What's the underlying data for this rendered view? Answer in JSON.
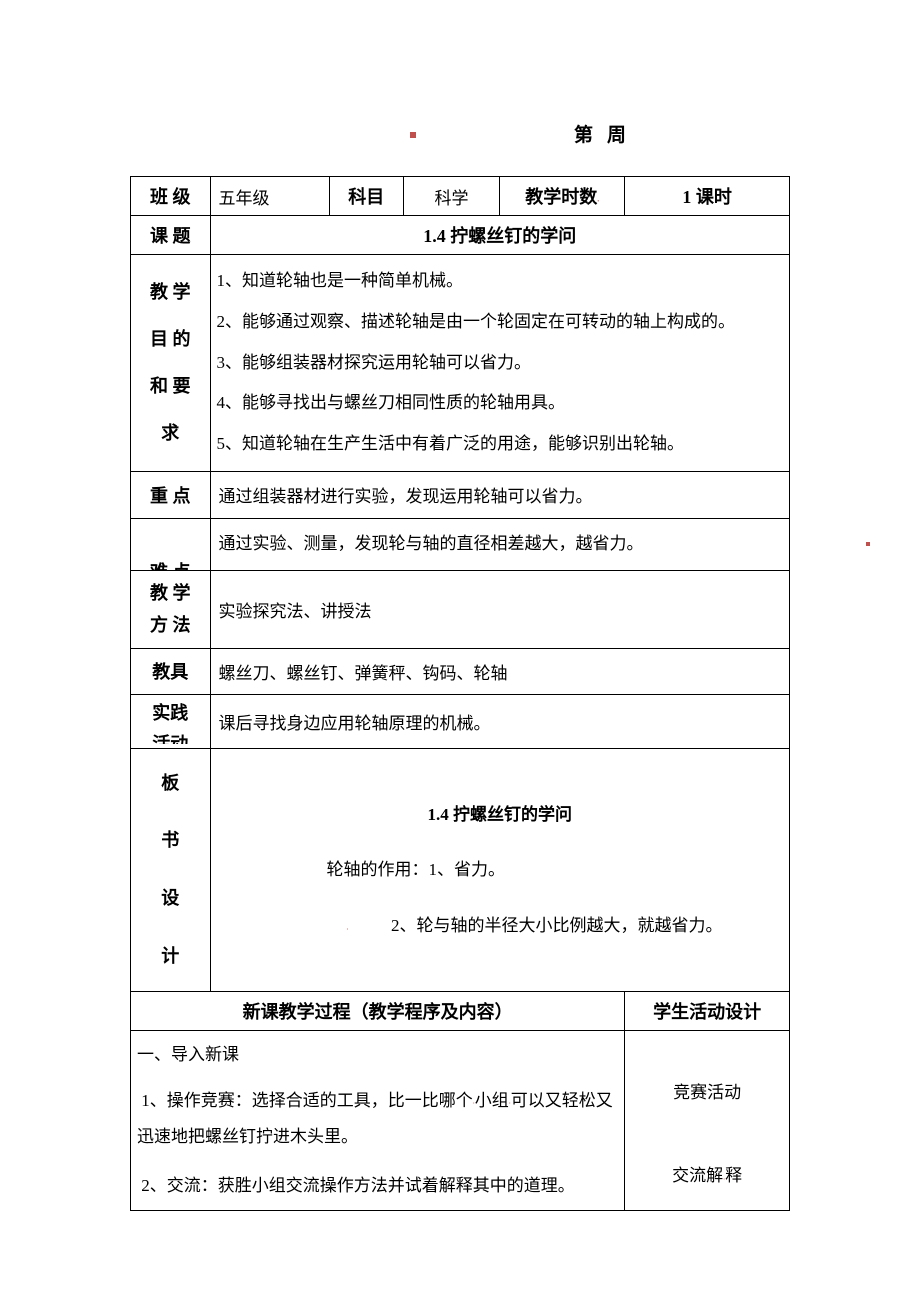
{
  "header": {
    "week_label": "第周"
  },
  "row1": {
    "class_label": "班 级",
    "class_value": "五年级",
    "subject_label": "科目",
    "subject_value": "科学",
    "hours_label": "教学时数",
    "hours_value": "1 课时"
  },
  "row2": {
    "topic_label": "课 题",
    "topic_value": "1.4 拧螺丝钉的学问"
  },
  "objectives": {
    "label_line1": "教 学",
    "label_line2": "目 的",
    "label_line3": "和 要",
    "label_line4": "求",
    "item1": "1、知道轮轴也是一种简单机械。",
    "item2": "2、能够通过观察、描述轮轴是由一个轮固定在可转动的轴上构成的。",
    "item3": "3、能够组装器材探究运用轮轴可以省力。",
    "item4": "4、能够寻找出与螺丝刀相同性质的轮轴用具。",
    "item5": "5、知道轮轴在生产生活中有着广泛的用途，能够识别出轮轴。"
  },
  "keypoint": {
    "label": "重 点",
    "value": "通过组装器材进行实验，发现运用轮轴可以省力。"
  },
  "difficulty": {
    "label": "难 点",
    "value": "通过实验、测量，发现轮与轴的直径相差越大，越省力。"
  },
  "method": {
    "label_line1": "教 学",
    "label_line2": "方 法",
    "value": "  实验探究法、讲授法"
  },
  "tools": {
    "label": "教具",
    "value": "螺丝刀、螺丝钉、弹簧秤、钩码、轮轴"
  },
  "practice": {
    "label_line1": "实践",
    "label_line2": "活动",
    "value": "课后寻找身边应用轮轴原理的机械。"
  },
  "board": {
    "label_c1": "板",
    "label_c2": "书",
    "label_c3": "设",
    "label_c4": "计",
    "title": "1.4 拧螺丝钉的学问",
    "line1": "轮轴的作用：1、省力。",
    "line2": "2、轮与轴的半径大小比例越大，就越省力。"
  },
  "process": {
    "left_header": "新课教学过程（教学程序及内容）",
    "right_header": "学生活动设计",
    "section1_title": "一、导入新课",
    "section1_item1": "1、操作竞赛：选择合适的工具，比一比哪个 小组 可以又轻松又迅速地把螺丝钉拧进木头里。",
    "section1_item2": "2、交流：获胜小组交流操作方法并试着解释其中的道理。",
    "activity1": "竞赛活动",
    "activity2": "交流解 释"
  },
  "colors": {
    "text": "#000000",
    "border": "#000000",
    "accent_red": "#c0504d",
    "background": "#ffffff"
  }
}
